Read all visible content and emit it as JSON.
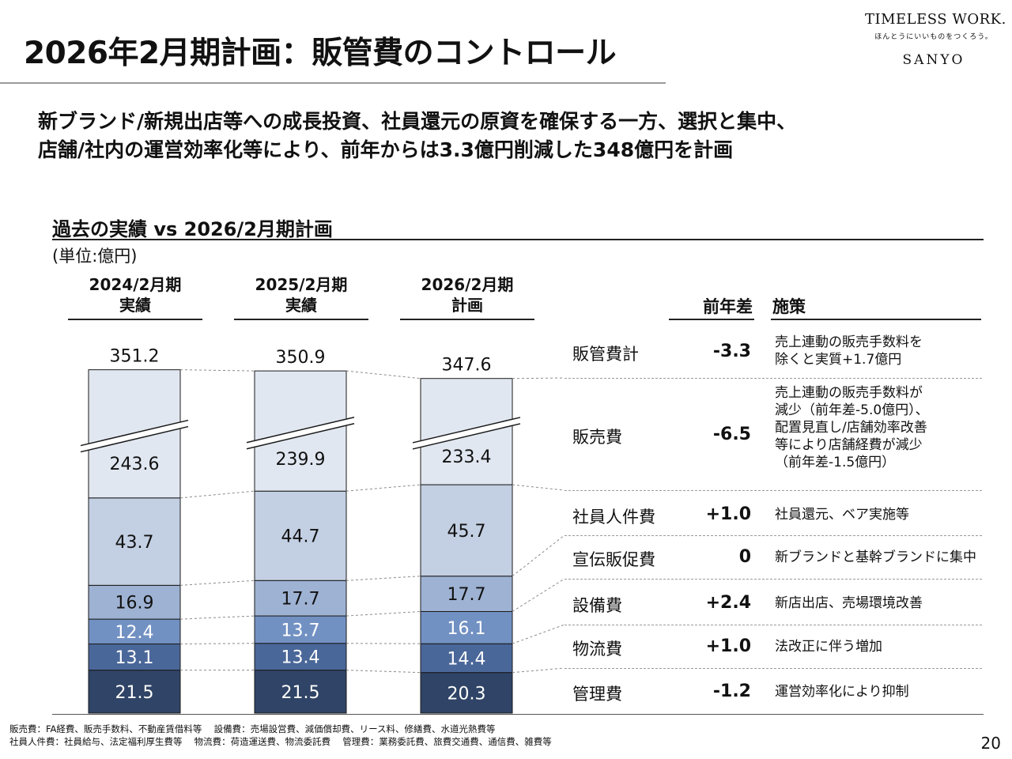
{
  "header": {
    "title": "2026年2月期計画：販管費のコントロール",
    "logo": {
      "main": "TIMELESS WORK.",
      "sub": "ほんとうにいいものをつくろう。",
      "brand": "SANYO"
    }
  },
  "headline": {
    "line1": "新ブランド/新規出店等への成長投資、社員還元の原資を確保する一方、選択と集中、",
    "line2": "店舗/社内の運営効率化等により、前年からは3.3億円削減した348億円を計画"
  },
  "section": {
    "title": "過去の実績 vs 2026/2月期計画",
    "unit": "(単位:億円)"
  },
  "columns": [
    {
      "line1": "2024/2月期",
      "line2": "実績"
    },
    {
      "line1": "2025/2月期",
      "line2": "実績"
    },
    {
      "line1": "2026/2月期",
      "line2": "計画"
    }
  ],
  "table_headers": {
    "diff": "前年差",
    "measure": "施策"
  },
  "rows": [
    {
      "name": "販管費計",
      "diff": "-3.3",
      "note": [
        "売上連動の販売手数料を",
        "除くと実質+1.7億円"
      ]
    },
    {
      "name": "販売費",
      "diff": "-6.5",
      "note": [
        "売上連動の販売手数料が",
        "減少（前年差-5.0億円）、",
        "配置見直し/店舗効率改善",
        "等により店舗経費が減少",
        "（前年差-1.5億円）"
      ]
    },
    {
      "name": "社員人件費",
      "diff": "+1.0",
      "note": [
        "社員還元、ベア実施等"
      ]
    },
    {
      "name": "宣伝販促費",
      "diff": "0",
      "note": [
        "新ブランドと基幹ブランドに集中"
      ]
    },
    {
      "name": "設備費",
      "diff": "+2.4",
      "note": [
        "新店出店、売場環境改善"
      ]
    },
    {
      "name": "物流費",
      "diff": "+1.0",
      "note": [
        "法改正に伴う増加"
      ]
    },
    {
      "name": "管理費",
      "diff": "-1.2",
      "note": [
        "運営効率化により抑制"
      ]
    }
  ],
  "chart_data": {
    "type": "bar",
    "stacked": true,
    "broken_axis": true,
    "unit": "億円",
    "categories": [
      "2024/2月期 実績",
      "2025/2月期 実績",
      "2026/2月期 計画"
    ],
    "series": [
      {
        "name": "管理費",
        "values": [
          21.5,
          21.5,
          20.3
        ],
        "color": "#2f4466",
        "text_color": "#ffffff"
      },
      {
        "name": "物流費",
        "values": [
          13.1,
          13.4,
          14.4
        ],
        "color": "#4a6799",
        "text_color": "#ffffff"
      },
      {
        "name": "設備費",
        "values": [
          12.4,
          13.7,
          16.1
        ],
        "color": "#7291c3",
        "text_color": "#ffffff"
      },
      {
        "name": "宣伝販促費",
        "values": [
          16.9,
          17.7,
          17.7
        ],
        "color": "#9eb2d3",
        "text_color": "#111111"
      },
      {
        "name": "社員人件費",
        "values": [
          43.7,
          44.7,
          45.7
        ],
        "color": "#c3cfe2",
        "text_color": "#111111"
      },
      {
        "name": "販売費",
        "values": [
          243.6,
          239.9,
          233.4
        ],
        "color": "#e1e7f1",
        "text_color": "#111111"
      }
    ],
    "totals": [
      351.2,
      350.9,
      347.6
    ],
    "totals_series_name": "販管費計"
  },
  "footnotes": [
    "販売費：FA経費、販売手数料、不動産賃借料等　 設備費：売場設営費、減価償却費、リース料、修繕費、水道光熱費等",
    "社員人件費：社員給与、法定福利厚生費等　 物流費：荷造運送費、物流委託費　 管理費：業務委託費、旅費交通費、通信費、雑費等"
  ],
  "page_number": "20"
}
